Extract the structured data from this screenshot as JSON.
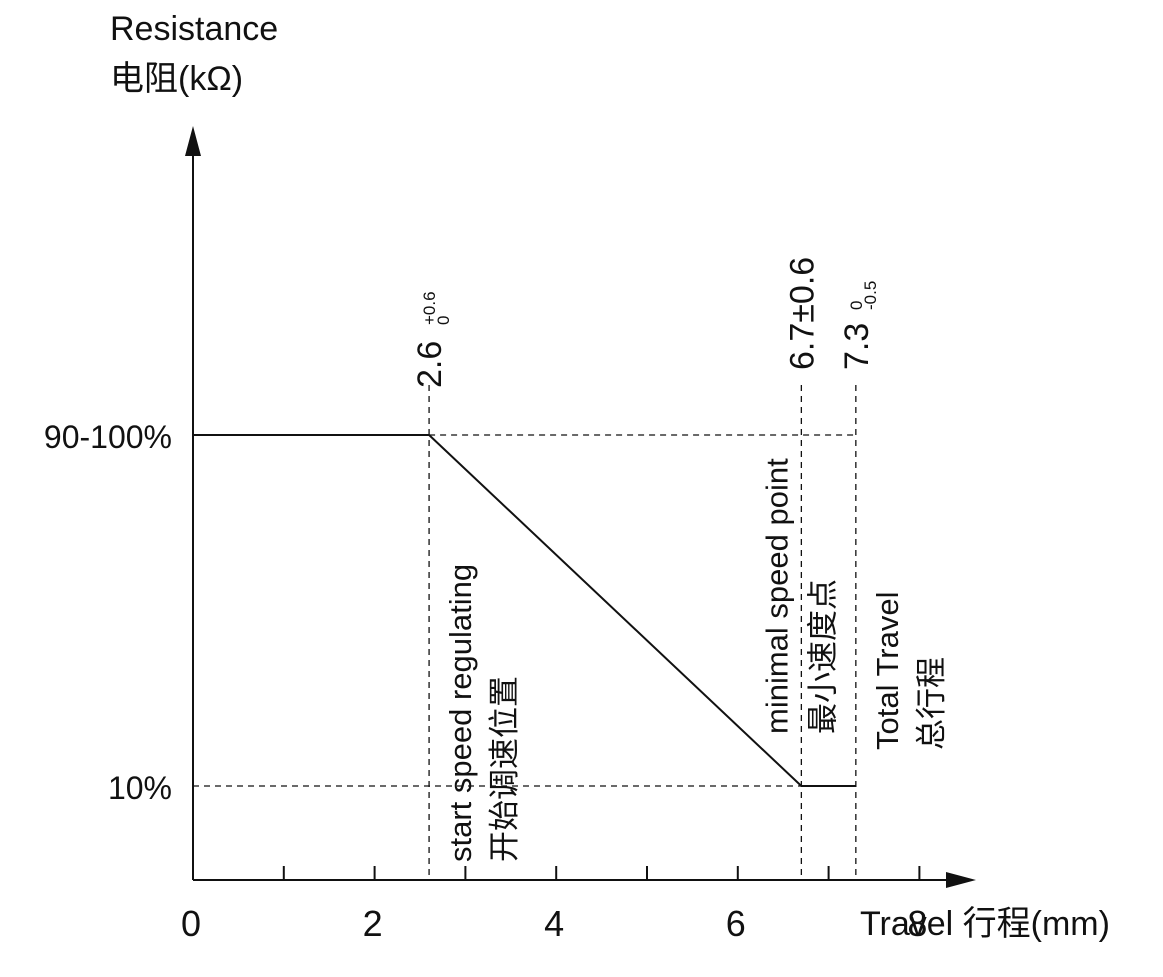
{
  "chart_data": {
    "type": "line",
    "y_axis_title_en": "Resistance",
    "y_axis_title_cn": "电阻(kΩ)",
    "x_axis_title": "Travel 行程(mm)",
    "x_ticks": [
      0,
      2,
      4,
      6,
      8
    ],
    "xlim": [
      0,
      9
    ],
    "y_categories": [
      "90-100%",
      "10%"
    ],
    "series": [
      {
        "points": [
          {
            "x": 0,
            "y": "90-100%"
          },
          {
            "x": 2.6,
            "y": "90-100%"
          },
          {
            "x": 6.7,
            "y": "10%"
          },
          {
            "x": 7.3,
            "y": "10%"
          }
        ]
      }
    ],
    "markers": [
      {
        "x": 2.6,
        "label": "2.6",
        "tol_upper": "+0.6",
        "tol_lower": "0",
        "annotation_en": "start speed regulating",
        "annotation_cn": "开始调速位置"
      },
      {
        "x": 6.7,
        "label": "6.7±0.6",
        "annotation_en": "minimal speed point",
        "annotation_cn": "最小速度点"
      },
      {
        "x": 7.3,
        "label": "7.3",
        "tol_upper": "0",
        "tol_lower": "-0.5",
        "annotation_en": "Total Travel",
        "annotation_cn": "总行程"
      }
    ],
    "colors": {
      "line": "#111111"
    }
  }
}
